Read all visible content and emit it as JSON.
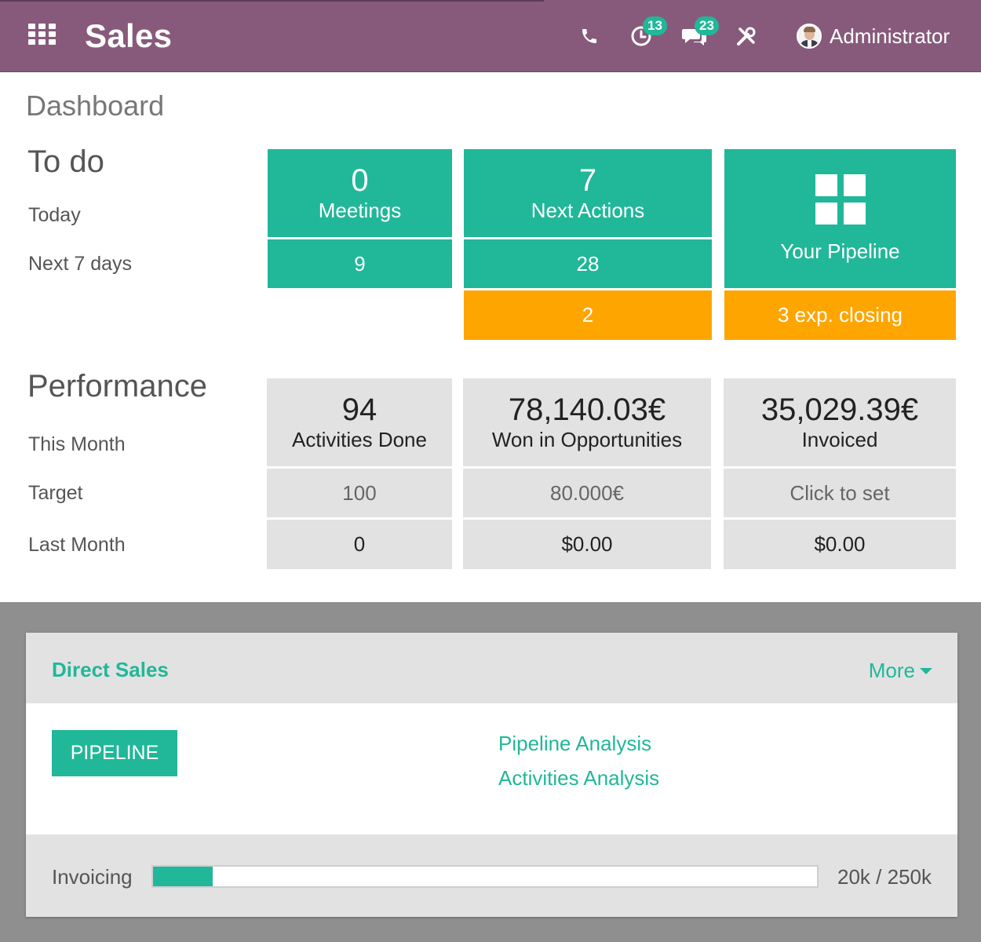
{
  "app": {
    "title": "Sales"
  },
  "systray": {
    "activity_count": "13",
    "messages_count": "23",
    "user_name": "Administrator"
  },
  "breadcrumb": "Dashboard",
  "todo": {
    "title": "To do",
    "rows": [
      "Today",
      "Next 7 days"
    ],
    "meetings": {
      "today": "0",
      "label": "Meetings",
      "next7": "9"
    },
    "next_actions": {
      "today": "7",
      "label": "Next Actions",
      "next7": "28",
      "overdue": "2"
    },
    "pipeline": {
      "label": "Your Pipeline",
      "exp_closing": "3 exp. closing"
    }
  },
  "performance": {
    "title": "Performance",
    "rows": [
      "This Month",
      "Target",
      "Last Month"
    ],
    "activities": {
      "value": "94",
      "label": "Activities Done",
      "target": "100",
      "last_month": "0"
    },
    "won": {
      "value": "78,140.03€",
      "label": "Won in Opportunities",
      "target": "80.000€",
      "last_month": "$0.00"
    },
    "invoiced": {
      "value": "35,029.39€",
      "label": "Invoiced",
      "target": "Click to set",
      "last_month": "$0.00"
    }
  },
  "team": {
    "name": "Direct Sales",
    "more_label": "More",
    "pipeline_button": "PIPELINE",
    "links": [
      "Pipeline Analysis",
      "Activities Analysis"
    ],
    "invoicing": {
      "label": "Invoicing",
      "value_text": "20k / 250k",
      "progress": 0.09
    }
  },
  "colors": {
    "brand": "#875a7b",
    "accent": "#21b799",
    "warning": "#ffa500",
    "tile_grey": "#e2e2e2"
  }
}
